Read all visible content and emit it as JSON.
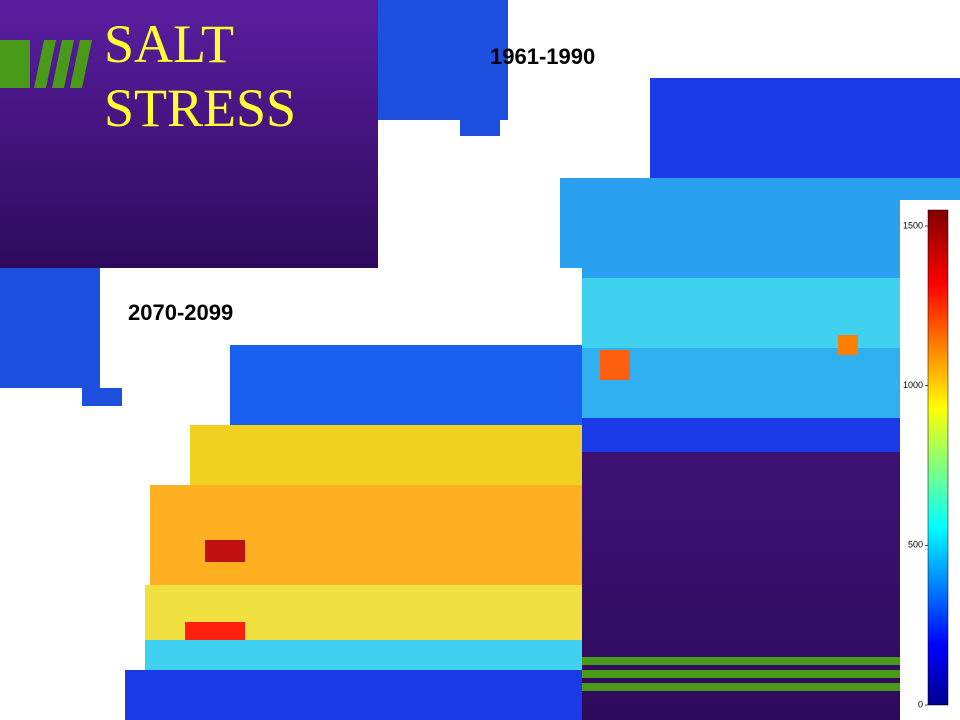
{
  "title": {
    "lines": [
      "SALT",
      "STRESS"
    ]
  },
  "maps": [
    {
      "label": "1961-1990"
    },
    {
      "label": "2070-2099"
    }
  ],
  "colorbar": {
    "lim": [
      0,
      1550
    ],
    "ticks": [
      0,
      500,
      1000,
      1500
    ]
  }
}
